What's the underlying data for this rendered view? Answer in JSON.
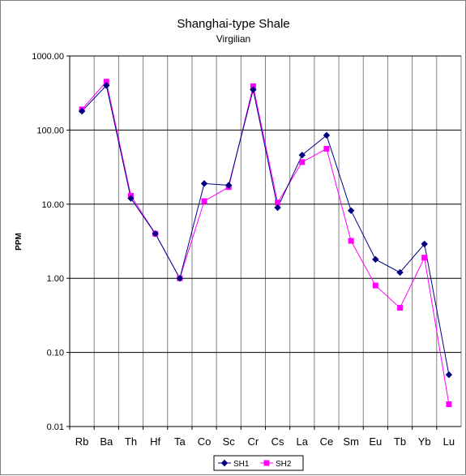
{
  "chart_data": {
    "type": "line",
    "title": "Shanghai-type Shale",
    "subtitle": "Virgilian",
    "ylabel": "PPM",
    "xlabel": "",
    "y_scale": "log",
    "ylim": [
      0.01,
      1000
    ],
    "y_ticks": [
      {
        "value": 1000,
        "label": "1000.00"
      },
      {
        "value": 100,
        "label": "100.00"
      },
      {
        "value": 10,
        "label": "10.00"
      },
      {
        "value": 1,
        "label": "1.00"
      },
      {
        "value": 0.1,
        "label": "0.10"
      },
      {
        "value": 0.01,
        "label": "0.01"
      }
    ],
    "grid": "horizontal major lines and vertical category lines",
    "legend_position": "bottom-right",
    "categories": [
      "Rb",
      "Ba",
      "Th",
      "Hf",
      "Ta",
      "Co",
      "Sc",
      "Cr",
      "Cs",
      "La",
      "Ce",
      "Sm",
      "Eu",
      "Tb",
      "Yb",
      "Lu"
    ],
    "series": [
      {
        "name": "SH1",
        "color": "#000080",
        "marker": "diamond",
        "values": [
          180,
          400,
          12,
          4,
          1,
          19,
          18,
          350,
          9,
          46,
          85,
          8.2,
          1.8,
          1.2,
          2.9,
          0.05
        ]
      },
      {
        "name": "SH2",
        "color": "#ff00ff",
        "marker": "square",
        "values": [
          190,
          450,
          13,
          4,
          1,
          11,
          17,
          390,
          10.5,
          37,
          56,
          3.2,
          0.8,
          0.4,
          1.9,
          0.02
        ]
      }
    ]
  }
}
